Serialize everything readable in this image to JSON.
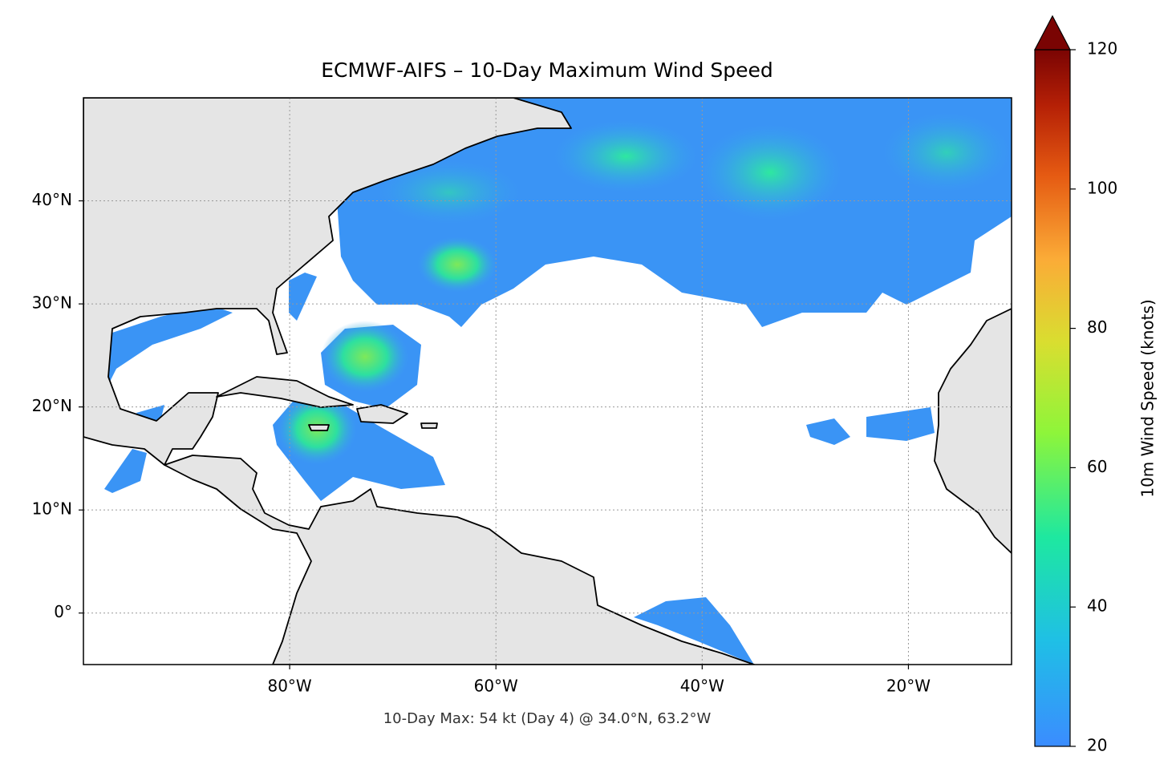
{
  "chart_data": {
    "type": "map",
    "title": "ECMWF-AIFS – 10-Day Maximum Wind Speed",
    "xlim": [
      -100,
      -10
    ],
    "ylim": [
      -5,
      50
    ],
    "xticks": [
      {
        "value": -80,
        "label": "80°W"
      },
      {
        "value": -60,
        "label": "60°W"
      },
      {
        "value": -40,
        "label": "40°W"
      },
      {
        "value": -20,
        "label": "20°W"
      }
    ],
    "yticks": [
      {
        "value": 0,
        "label": "0°"
      },
      {
        "value": 10,
        "label": "10°N"
      },
      {
        "value": 20,
        "label": "20°N"
      },
      {
        "value": 30,
        "label": "30°N"
      },
      {
        "value": 40,
        "label": "40°N"
      }
    ],
    "grid": true,
    "colorbar": {
      "label": "10m Wind Speed (knots)",
      "lim": [
        20,
        120
      ],
      "ticks": [
        20,
        40,
        60,
        80,
        100,
        120
      ]
    },
    "annotation": "10-Day Max: 54 kt (Day 4) @ 34.0°N, 63.2°W"
  }
}
